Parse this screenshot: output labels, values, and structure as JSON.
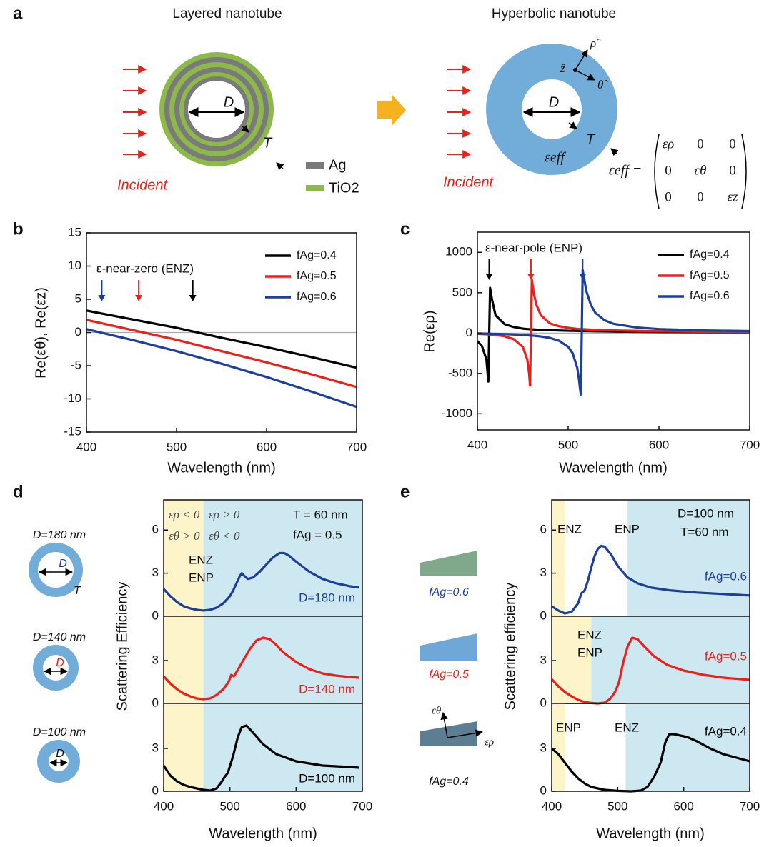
{
  "panel_a": {
    "label": "a",
    "left": {
      "title": "Layered nanotube",
      "D": "D",
      "T": "T",
      "incident": "Incident",
      "legend": [
        {
          "name": "Ag",
          "color": "#7a7a7a"
        },
        {
          "name": "TiO2",
          "color": "#8db84a"
        }
      ]
    },
    "right": {
      "title": "Hyperbolic nanotube",
      "D": "D",
      "T": "T",
      "incident": "Incident",
      "eps": "εeff",
      "axes": [
        "ρ̂",
        "ẑ",
        "θ̂"
      ],
      "matrix": {
        "lhs": "εeff =",
        "rows": [
          [
            "ερ",
            "0",
            "0"
          ],
          [
            "0",
            "εθ",
            "0"
          ],
          [
            "0",
            "0",
            "εz"
          ]
        ]
      }
    }
  },
  "chart_data": [
    {
      "type": "line",
      "panel": "b",
      "ylabel": "Re(εθ), Re(εz)",
      "xlabel": "Wavelength (nm)",
      "x": [
        400,
        450,
        500,
        550,
        600,
        650,
        700
      ],
      "series": [
        {
          "name": "fAg=0.4",
          "color": "#000000",
          "values": [
            3.3,
            2.0,
            0.7,
            -0.8,
            -2.2,
            -3.7,
            -5.3
          ]
        },
        {
          "name": "fAg=0.5",
          "color": "#e8211c",
          "values": [
            1.9,
            0.4,
            -1.1,
            -2.8,
            -4.5,
            -6.3,
            -8.2
          ]
        },
        {
          "name": "fAg=0.6",
          "color": "#1d3f9a",
          "values": [
            0.5,
            -1.1,
            -2.8,
            -4.7,
            -6.7,
            -8.9,
            -11.2
          ]
        }
      ],
      "xlim": [
        400,
        700
      ],
      "ylim": [
        -15,
        15
      ],
      "xticks": [
        400,
        500,
        600,
        700
      ],
      "yticks": [
        -15,
        -10,
        -5,
        0,
        5,
        10,
        15
      ],
      "hline": 0,
      "legend": "upper right",
      "annotations": [
        "ε-near-zero (ENZ)"
      ],
      "arrows": [
        {
          "x": 417,
          "color": "#1d3f9a"
        },
        {
          "x": 458,
          "color": "#e8211c"
        },
        {
          "x": 518,
          "color": "#000000"
        }
      ]
    },
    {
      "type": "line",
      "panel": "c",
      "ylabel": "Re(ερ)",
      "xlabel": "Wavelength (nm)",
      "x": [
        400,
        405,
        410,
        412,
        413,
        414,
        416,
        420,
        430,
        440,
        450,
        455,
        457,
        458,
        459,
        460,
        462,
        465,
        470,
        480,
        490,
        500,
        505,
        510,
        512,
        513,
        514,
        515,
        516,
        518,
        520,
        525,
        530,
        540,
        550,
        575,
        600,
        650,
        700
      ],
      "series": [
        {
          "name": "fAg=0.4",
          "color": "#000000",
          "values": [
            -100,
            -160,
            -330,
            -600,
            0,
            560,
            420,
            220,
            110,
            75,
            55,
            50,
            49,
            48,
            47,
            46,
            45,
            43,
            41,
            36,
            32,
            29,
            28,
            27,
            26,
            26,
            26,
            26,
            25,
            25,
            25,
            24,
            23,
            21,
            19,
            16,
            14,
            11,
            9
          ]
        },
        {
          "name": "fAg=0.5",
          "color": "#e8211c",
          "values": [
            -10,
            -12,
            -15,
            -16,
            -17,
            -18,
            -19,
            -22,
            -40,
            -75,
            -170,
            -330,
            -500,
            -650,
            0,
            660,
            500,
            350,
            220,
            120,
            85,
            65,
            58,
            52,
            50,
            50,
            49,
            49,
            48,
            47,
            46,
            43,
            40,
            36,
            33,
            27,
            23,
            17,
            13
          ]
        },
        {
          "name": "fAg=0.6",
          "color": "#1d3f9a",
          "values": [
            -5,
            -6,
            -7,
            -8,
            -8,
            -8,
            -9,
            -10,
            -13,
            -17,
            -22,
            -26,
            -28,
            -29,
            -30,
            -31,
            -33,
            -36,
            -42,
            -60,
            -95,
            -170,
            -250,
            -430,
            -580,
            -680,
            -760,
            0,
            780,
            650,
            520,
            350,
            250,
            160,
            115,
            70,
            50,
            33,
            25
          ]
        }
      ],
      "xlim": [
        400,
        700
      ],
      "ylim": [
        -1200,
        1250
      ],
      "xticks": [
        400,
        500,
        600,
        700
      ],
      "yticks": [
        -1000,
        -500,
        0,
        500,
        1000
      ],
      "hline": 0,
      "legend": "upper right",
      "annotations": [
        "ε-near-pole (ENP)"
      ],
      "arrows": [
        {
          "x": 413,
          "color": "#000000"
        },
        {
          "x": 459,
          "color": "#e8211c"
        },
        {
          "x": 516,
          "color": "#1d3f9a"
        }
      ]
    },
    {
      "type": "line",
      "panel": "d",
      "x": [
        400,
        410,
        420,
        430,
        440,
        450,
        460,
        470,
        480,
        490,
        500,
        505,
        510,
        515,
        518,
        522,
        527,
        535,
        545,
        555,
        565,
        575,
        582,
        590,
        600,
        620,
        640,
        660,
        680,
        695
      ],
      "series": [
        {
          "name": "D=180 nm",
          "color": "#1d3f9a",
          "values": [
            1.9,
            1.4,
            1.0,
            0.7,
            0.55,
            0.45,
            0.4,
            0.45,
            0.6,
            0.9,
            1.4,
            1.8,
            2.3,
            2.8,
            3.0,
            2.8,
            2.6,
            2.7,
            3.1,
            3.6,
            4.1,
            4.4,
            4.4,
            4.2,
            3.8,
            3.1,
            2.6,
            2.3,
            2.1,
            2.0
          ]
        }
      ],
      "xlim": [
        400,
        700
      ],
      "ylim": [
        0,
        8.1
      ],
      "yticks": [
        0,
        3,
        6
      ],
      "regions": [
        {
          "x": [
            400,
            460
          ],
          "color": "#fdf5c9"
        },
        {
          "x": [
            460,
            700
          ],
          "color": "#cde8f0"
        }
      ],
      "annotations": [
        "ερ < 0",
        "ερ > 0",
        "εθ > 0",
        "εθ < 0",
        "T = 60 nm",
        "fAg = 0.5",
        "ENZ",
        "ENP"
      ],
      "diagram": {
        "label": "D=180 nm",
        "D": "D",
        "T": "T"
      }
    },
    {
      "type": "line",
      "ylabel": "Scattering Efficiency",
      "x": [
        400,
        410,
        420,
        430,
        440,
        450,
        460,
        470,
        480,
        490,
        498,
        502,
        506,
        510,
        520,
        530,
        540,
        550,
        560,
        570,
        580,
        600,
        620,
        640,
        660,
        680,
        695
      ],
      "series": [
        {
          "name": "D=140 nm",
          "color": "#e8211c",
          "values": [
            1.9,
            1.4,
            1.0,
            0.7,
            0.5,
            0.35,
            0.3,
            0.35,
            0.6,
            1.0,
            1.5,
            2.0,
            1.9,
            2.2,
            3.0,
            3.8,
            4.4,
            4.6,
            4.5,
            4.1,
            3.6,
            2.9,
            2.4,
            2.1,
            1.95,
            1.85,
            1.8
          ]
        }
      ],
      "xlim": [
        400,
        700
      ],
      "ylim": [
        0,
        6.1
      ],
      "yticks": [
        0,
        3
      ],
      "regions": [
        {
          "x": [
            400,
            460
          ],
          "color": "#fdf5c9"
        },
        {
          "x": [
            460,
            700
          ],
          "color": "#cde8f0"
        }
      ],
      "diagram": {
        "label": "D=140 nm",
        "D": "D"
      }
    },
    {
      "type": "line",
      "xlabel": "Wavelength (nm)",
      "x": [
        400,
        410,
        420,
        430,
        440,
        450,
        460,
        470,
        480,
        488,
        492,
        497,
        505,
        512,
        518,
        525,
        535,
        550,
        570,
        600,
        640,
        680,
        695
      ],
      "series": [
        {
          "name": "D=100 nm",
          "color": "#000000",
          "values": [
            1.8,
            1.1,
            0.7,
            0.45,
            0.3,
            0.2,
            0.1,
            0.05,
            0.2,
            0.7,
            1.0,
            1.3,
            2.5,
            3.8,
            4.5,
            4.6,
            4.1,
            3.3,
            2.6,
            2.1,
            1.8,
            1.7,
            1.65
          ]
        }
      ],
      "xlim": [
        400,
        700
      ],
      "ylim": [
        0,
        6.15
      ],
      "xticks": [
        400,
        500,
        600,
        700
      ],
      "yticks": [
        0,
        3
      ],
      "regions": [
        {
          "x": [
            400,
            460
          ],
          "color": "#fdf5c9"
        },
        {
          "x": [
            460,
            700
          ],
          "color": "#cde8f0"
        }
      ],
      "diagram": {
        "label": "D=100 nm",
        "D": "D"
      }
    },
    {
      "type": "line",
      "panel": "e",
      "x": [
        400,
        410,
        420,
        430,
        440,
        445,
        450,
        455,
        460,
        465,
        470,
        475,
        480,
        490,
        500,
        515,
        530,
        550,
        580,
        620,
        660,
        700
      ],
      "series": [
        {
          "name": "fAg=0.6",
          "color": "#1d3f9a",
          "values": [
            0.7,
            0.4,
            0.2,
            0.3,
            0.9,
            1.6,
            1.8,
            2.5,
            3.4,
            4.2,
            4.7,
            4.9,
            4.85,
            4.3,
            3.5,
            2.7,
            2.3,
            2.0,
            1.8,
            1.65,
            1.55,
            1.45
          ]
        }
      ],
      "xlim": [
        400,
        700
      ],
      "ylim": [
        0,
        8.1
      ],
      "yticks": [
        0,
        3,
        6
      ],
      "regions": [
        {
          "x": [
            400,
            420
          ],
          "color": "#fdf5c9"
        },
        {
          "x": [
            515,
            700
          ],
          "color": "#cde8f0"
        }
      ],
      "annotations": [
        "D=100 nm",
        "T=60 nm",
        "ENZ",
        "ENP"
      ],
      "diagram": {
        "label": "fAg=0.6",
        "color": "#7fa98a"
      }
    },
    {
      "type": "line",
      "ylabel": "Scattering efficiency",
      "x": [
        400,
        410,
        420,
        430,
        440,
        450,
        460,
        470,
        480,
        488,
        493,
        497,
        502,
        508,
        515,
        522,
        530,
        540,
        555,
        575,
        600,
        630,
        660,
        700
      ],
      "series": [
        {
          "name": "fAg=0.5",
          "color": "#e8211c",
          "values": [
            1.7,
            1.2,
            0.8,
            0.5,
            0.25,
            0.1,
            0.03,
            0,
            0.05,
            0.3,
            0.6,
            0.9,
            1.5,
            2.8,
            4.0,
            4.6,
            4.5,
            4.0,
            3.3,
            2.7,
            2.3,
            2.0,
            1.8,
            1.65
          ]
        }
      ],
      "xlim": [
        400,
        700
      ],
      "ylim": [
        0,
        6.1
      ],
      "yticks": [
        0,
        3
      ],
      "regions": [
        {
          "x": [
            400,
            460
          ],
          "color": "#fdf5c9"
        },
        {
          "x": [
            460,
            700
          ],
          "color": "#cde8f0"
        }
      ],
      "annotations": [
        "ENZ",
        "ENP"
      ],
      "diagram": {
        "label": "fAg=0.5",
        "color": "#6fa8d6"
      }
    },
    {
      "type": "line",
      "xlabel": "Wavelength (nm)",
      "x": [
        400,
        410,
        420,
        430,
        440,
        450,
        460,
        480,
        500,
        520,
        535,
        545,
        555,
        565,
        572,
        578,
        585,
        595,
        605,
        620,
        640,
        660,
        680,
        700
      ],
      "series": [
        {
          "name": "fAg=0.4",
          "color": "#000000",
          "values": [
            3.0,
            2.6,
            2.0,
            1.4,
            0.9,
            0.55,
            0.3,
            0.1,
            0.03,
            0,
            0.05,
            0.3,
            1.0,
            2.0,
            3.4,
            4.0,
            4.0,
            3.9,
            3.8,
            3.5,
            3.0,
            2.6,
            2.35,
            2.1
          ]
        }
      ],
      "xlim": [
        400,
        700
      ],
      "ylim": [
        0,
        6.15
      ],
      "xticks": [
        400,
        500,
        600,
        700
      ],
      "yticks": [
        0,
        3
      ],
      "regions": [
        {
          "x": [
            400,
            420
          ],
          "color": "#fdf5c9"
        },
        {
          "x": [
            512,
            700
          ],
          "color": "#cde8f0"
        }
      ],
      "annotations": [
        "ENP",
        "ENZ"
      ],
      "diagram": {
        "label": "fAg=0.4",
        "color": "#5d7d93",
        "axes": [
          "εθ",
          "ερ"
        ]
      }
    }
  ]
}
